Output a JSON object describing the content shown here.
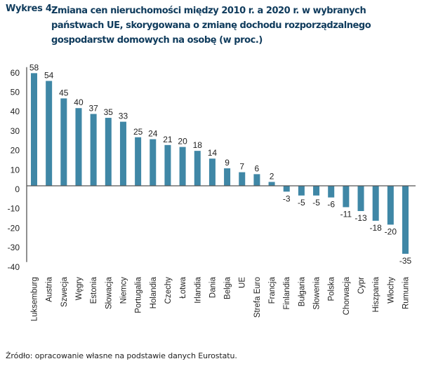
{
  "figure": {
    "number": "Wykres 4.",
    "title": "Zmiana cen nieruchomości między 2010 r. a 2020 r. w wybranych państwach UE, skorygowana o zmianę dochodu rozporządzalnego gospodarstw domowych na osobę (w proc.)",
    "source": "Źródło: opracowanie własne na podstawie danych Eurostatu."
  },
  "colors": {
    "bar": "#3f87a6",
    "title": "#0f3b5c",
    "axis": "#555555"
  },
  "chart_data": {
    "type": "bar",
    "title": "Zmiana cen nieruchomości między 2010 r. a 2020 r. w wybranych państwach UE, skorygowana o zmianę dochodu rozporządzalnego gospodarstw domowych na osobę (w proc.)",
    "xlabel": "",
    "ylabel": "",
    "ylim": [
      -40,
      60
    ],
    "yticks": [
      60,
      50,
      40,
      30,
      20,
      10,
      0,
      -10,
      -20,
      -30,
      -40
    ],
    "grid": false,
    "legend": "none",
    "categories": [
      "Luksemburg",
      "Austria",
      "Szwecja",
      "Węgry",
      "Estonia",
      "Słowacja",
      "Niemcy",
      "Portugalia",
      "Holandia",
      "Czechy",
      "Łotwa",
      "Irlandia",
      "Dania",
      "Belgia",
      "UE",
      "Strefa Euro",
      "Francja",
      "Finlandia",
      "Bułgaria",
      "Słowenia",
      "Polska",
      "Chorwacja",
      "Cypr",
      "Hiszpania",
      "Włochy",
      "Rumunia"
    ],
    "values": [
      58,
      54,
      45,
      40,
      37,
      35,
      33,
      25,
      24,
      21,
      20,
      18,
      14,
      9,
      7,
      6,
      2,
      -3,
      -5,
      -5,
      -6,
      -11,
      -13,
      -18,
      -20,
      -35
    ]
  }
}
